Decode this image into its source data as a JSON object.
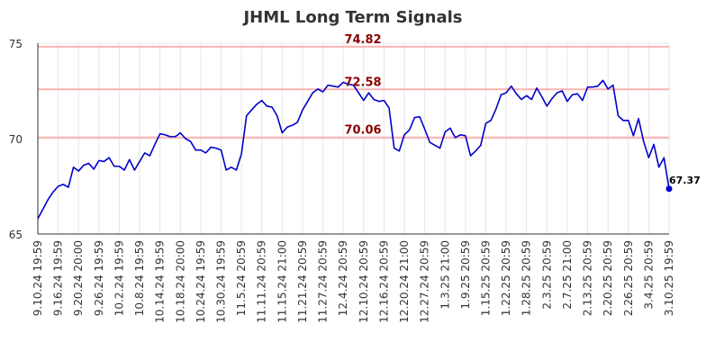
{
  "chart_data": {
    "type": "line",
    "title": "JHML Long Term Signals",
    "xlabel": "",
    "ylabel": "",
    "ylim": [
      65,
      75
    ],
    "y_ticks": [
      65,
      70,
      75
    ],
    "grid": true,
    "colors": {
      "line": "#0000cc",
      "reference": "#ffb3b3",
      "reference_label": "#8b0000",
      "last_point": "#0000cc"
    },
    "reference_lines": [
      {
        "value": 74.82,
        "label": "74.82"
      },
      {
        "value": 72.58,
        "label": "72.58"
      },
      {
        "value": 70.06,
        "label": "70.06"
      }
    ],
    "x_tick_labels": [
      "9.10.24 19:59",
      "9.16.24 19:59",
      "9.20.24 20:00",
      "9.26.24 19:59",
      "10.2.24 19:59",
      "10.8.24 19:59",
      "10.14.24 19:59",
      "10.18.24 20:00",
      "10.24.24 19:59",
      "10.30.24 19:59",
      "11.5.24 20:59",
      "11.11.24 20:59",
      "11.15.24 21:00",
      "11.21.24 20:59",
      "11.27.24 20:59",
      "12.4.24 20:59",
      "12.10.24 20:59",
      "12.16.24 20:59",
      "12.20.24 21:00",
      "12.27.24 20:59",
      "1.3.25 21:00",
      "1.9.25 20:59",
      "1.15.25 20:59",
      "1.22.25 20:59",
      "1.28.25 20:59",
      "2.3.25 20:59",
      "2.7.25 21:00",
      "2.13.25 20:59",
      "2.20.25 20:59",
      "2.26.25 20:59",
      "3.4.25 20:59",
      "3.10.25 19:59"
    ],
    "series": [
      {
        "values": [
          65.8,
          66.3,
          66.8,
          67.2,
          67.5,
          67.6,
          67.45,
          68.5,
          68.3,
          68.6,
          68.7,
          68.4,
          68.85,
          68.8,
          69.0,
          68.55,
          68.55,
          68.35,
          68.9,
          68.35,
          68.8,
          69.25,
          69.1,
          69.7,
          70.25,
          70.2,
          70.1,
          70.1,
          70.3,
          70.0,
          69.85,
          69.4,
          69.4,
          69.25,
          69.55,
          69.5,
          69.4,
          68.35,
          68.5,
          68.35,
          69.2,
          71.2,
          71.5,
          71.8,
          72.0,
          71.7,
          71.65,
          71.2,
          70.3,
          70.6,
          70.7,
          70.85,
          71.5,
          71.95,
          72.4,
          72.6,
          72.45,
          72.8,
          72.75,
          72.7,
          72.95,
          72.85,
          72.8,
          72.4,
          72.0,
          72.4,
          72.05,
          71.95,
          72.0,
          71.6,
          69.5,
          69.35,
          70.2,
          70.45,
          71.1,
          71.15,
          70.5,
          69.8,
          69.65,
          69.5,
          70.35,
          70.55,
          70.05,
          70.2,
          70.15,
          69.1,
          69.35,
          69.65,
          70.8,
          70.95,
          71.55,
          72.3,
          72.4,
          72.75,
          72.35,
          72.05,
          72.25,
          72.05,
          72.65,
          72.2,
          71.7,
          72.1,
          72.4,
          72.5,
          71.95,
          72.3,
          72.35,
          72.0,
          72.7,
          72.7,
          72.75,
          73.05,
          72.6,
          72.8,
          71.2,
          70.95,
          70.95,
          70.15,
          71.05,
          69.85,
          69.0,
          69.7,
          68.5,
          69.0,
          67.37
        ]
      }
    ],
    "last_value_label": "67.37"
  }
}
